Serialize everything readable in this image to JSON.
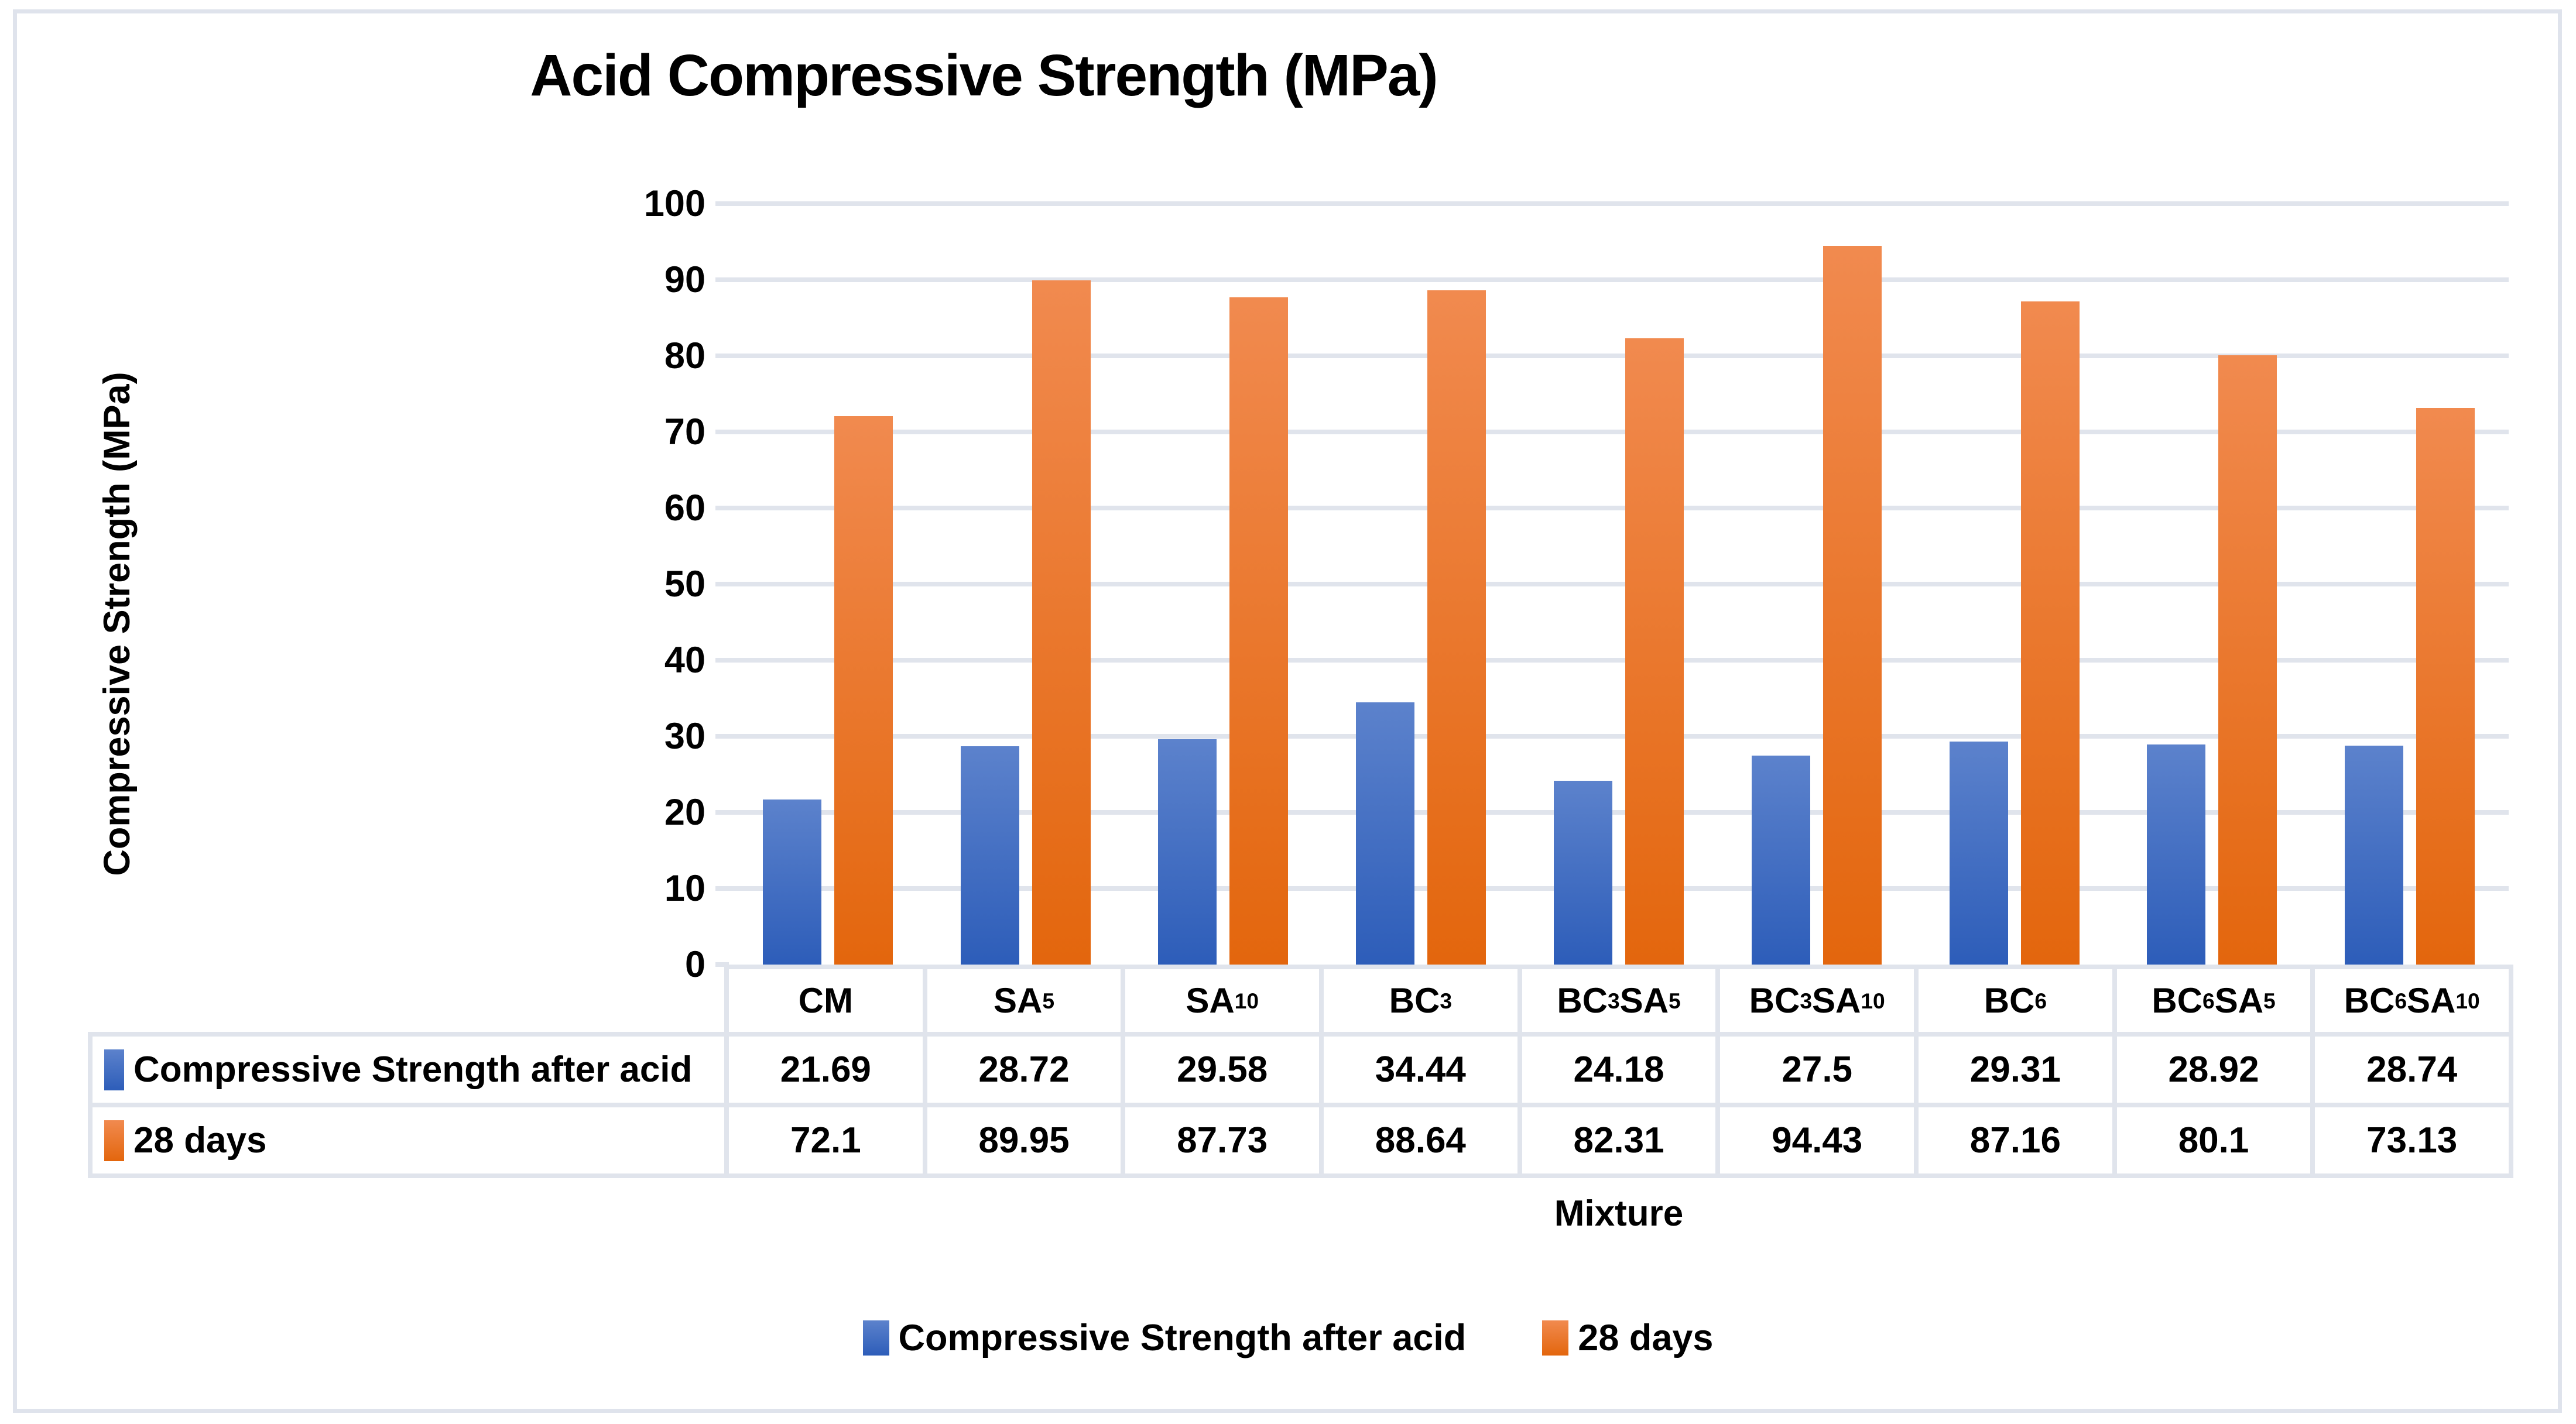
{
  "title": "Acid Compressive Strength (MPa)",
  "colors": {
    "grid": "#E0E4EC",
    "frame_border": "#DFE3EC",
    "text": "#000000",
    "blue_top": "#5C82CC",
    "blue_bottom": "#2D5DB9",
    "orange_top": "#F18A4F",
    "orange_bottom": "#E3660D"
  },
  "chart_data": {
    "type": "bar",
    "title": "Acid Compressive Strength (MPa)",
    "xlabel": "Mixture",
    "ylabel": "Compressive Strength (MPa)",
    "ylim": [
      0,
      100
    ],
    "ytick_step": 10,
    "yticks": [
      100,
      90,
      80,
      70,
      60,
      50,
      40,
      30,
      20,
      10,
      0
    ],
    "grid": true,
    "legend_position": "bottom",
    "data_table_shown": true,
    "categories": [
      "CM",
      "SA_5",
      "SA_10",
      "BC_3",
      "BC_3SA_5",
      "BC_3SA_10",
      "BC_6",
      "BC_6SA_5",
      "BC_6SA_10"
    ],
    "series": [
      {
        "name": "Compressive Strength after acid",
        "color_top": "#5C82CC",
        "color_bottom": "#2D5DB9",
        "values": [
          21.69,
          28.72,
          29.58,
          34.44,
          24.18,
          27.5,
          29.31,
          28.92,
          28.74
        ]
      },
      {
        "name": "28 days",
        "color_top": "#F18A4F",
        "color_bottom": "#E3660D",
        "values": [
          72.1,
          89.95,
          87.73,
          88.64,
          82.31,
          94.43,
          87.16,
          80.1,
          73.13
        ]
      }
    ]
  }
}
